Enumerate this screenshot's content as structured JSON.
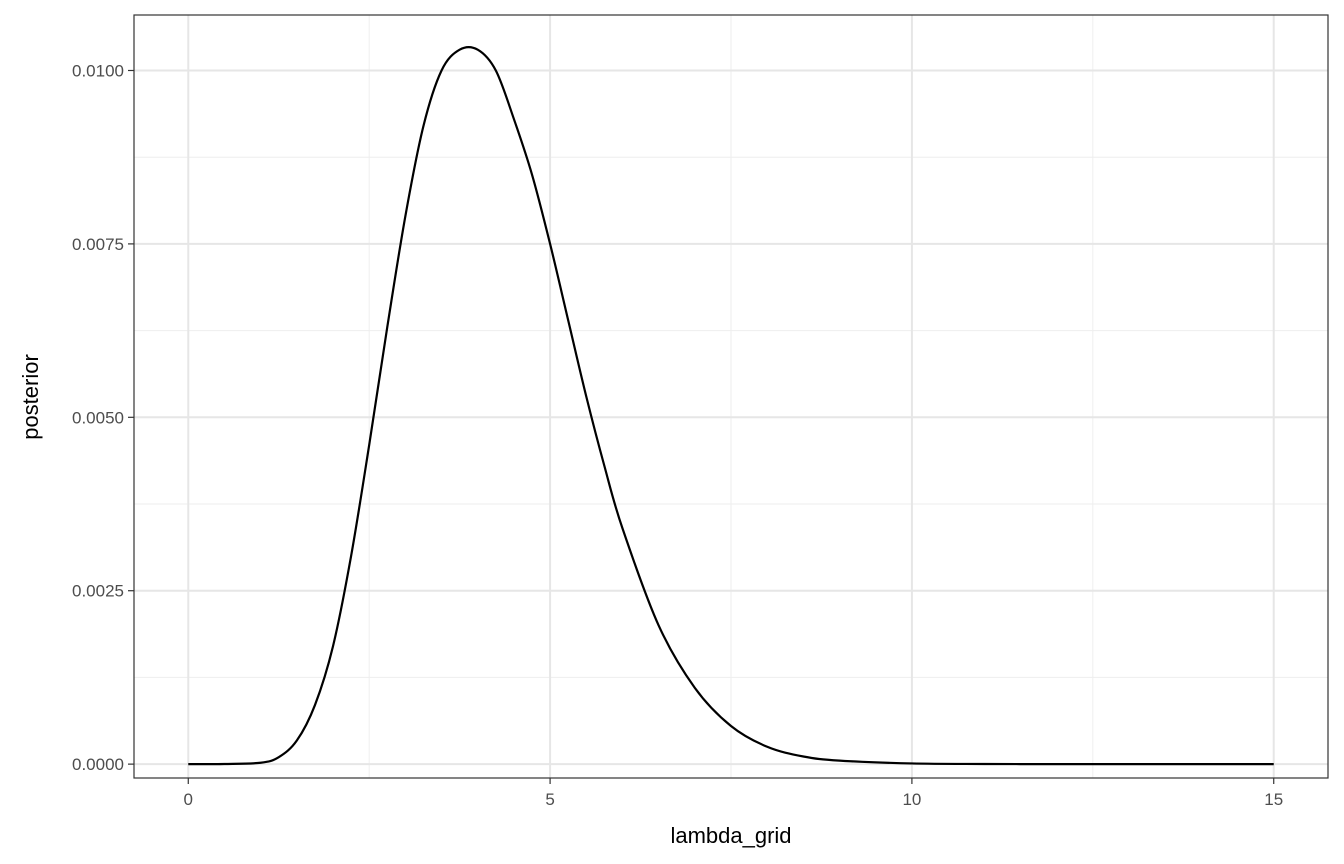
{
  "chart_data": {
    "type": "line",
    "title": "",
    "xlabel": "lambda_grid",
    "ylabel": "posterior",
    "xlim": [
      -0.75,
      15.75
    ],
    "ylim": [
      -0.0002,
      0.0108
    ],
    "x_ticks": [
      0,
      5,
      10,
      15
    ],
    "x_tick_labels": [
      "0",
      "5",
      "10",
      "15"
    ],
    "y_ticks": [
      0,
      0.0025,
      0.005,
      0.0075,
      0.01
    ],
    "y_tick_labels": [
      "0.0000",
      "0.0025",
      "0.0050",
      "0.0075",
      "0.0100"
    ],
    "grid": true,
    "legend": "none",
    "line_color": "#000000",
    "series": [
      {
        "x": [
          0,
          0.5,
          1.0,
          1.25,
          1.5,
          1.75,
          2.0,
          2.25,
          2.5,
          2.75,
          3.0,
          3.25,
          3.5,
          3.75,
          4.0,
          4.25,
          4.5,
          4.75,
          5.0,
          5.25,
          5.5,
          5.75,
          6.0,
          6.5,
          7.0,
          7.5,
          8.0,
          8.5,
          9.0,
          10.0,
          11.0,
          12.0,
          13.0,
          14.0,
          15.0
        ],
        "y": [
          0.0,
          2e-06,
          2e-05,
          0.0001,
          0.00034,
          0.00085,
          0.0017,
          0.003,
          0.0046,
          0.0063,
          0.0079,
          0.0092,
          0.01,
          0.0103,
          0.0103,
          0.01,
          0.0093,
          0.0085,
          0.0075,
          0.0064,
          0.0053,
          0.0043,
          0.0034,
          0.002,
          0.0011,
          0.00055,
          0.00025,
          0.00011,
          5e-05,
          1e-05,
          2e-06,
          0.0,
          0.0,
          0.0,
          0.0
        ]
      }
    ]
  }
}
